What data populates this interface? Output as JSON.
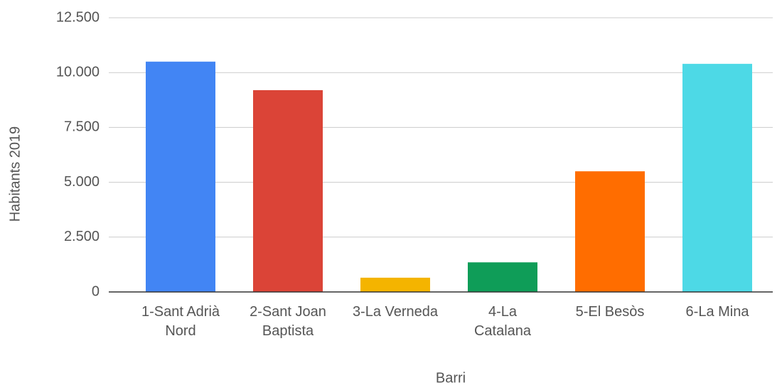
{
  "chart_data": {
    "type": "bar",
    "categories": [
      "1-Sant Adrià\nNord",
      "2-Sant Joan\nBaptista",
      "3-La Verneda",
      "4-La\nCatalana",
      "5-El Besòs",
      "6-La Mina"
    ],
    "values": [
      10500,
      9200,
      650,
      1350,
      5500,
      10400
    ],
    "colors": [
      "#4285f4",
      "#db4437",
      "#f4b400",
      "#0f9d58",
      "#ff6d00",
      "#4dd9e6"
    ],
    "ylabel": "Habitants 2019",
    "xlabel": "Barri",
    "ylim": [
      0,
      12500
    ],
    "yticks": [
      {
        "value": 0,
        "label": "0"
      },
      {
        "value": 2500,
        "label": "2.500"
      },
      {
        "value": 5000,
        "label": "5.000"
      },
      {
        "value": 7500,
        "label": "7.500"
      },
      {
        "value": 10000,
        "label": "10.000"
      },
      {
        "value": 12500,
        "label": "12.500"
      }
    ],
    "grid": true
  }
}
